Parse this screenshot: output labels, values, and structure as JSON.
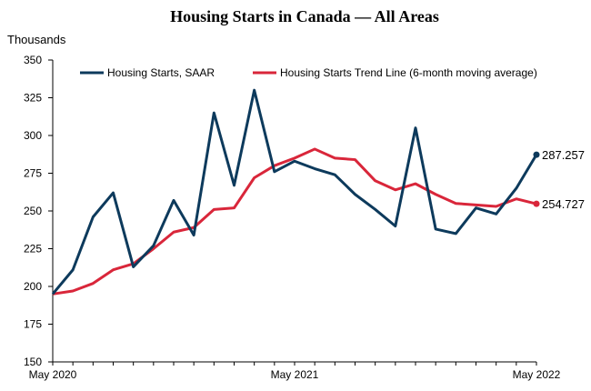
{
  "chart_data": {
    "type": "line",
    "title": "Housing Starts in Canada — All Areas",
    "ylabel": "Thousands",
    "xlabel": "",
    "ylim": [
      150,
      350
    ],
    "yticks": [
      150,
      175,
      200,
      225,
      250,
      275,
      300,
      325,
      350
    ],
    "x": [
      "May 2020",
      "Jun 2020",
      "Jul 2020",
      "Aug 2020",
      "Sep 2020",
      "Oct 2020",
      "Nov 2020",
      "Dec 2020",
      "Jan 2021",
      "Feb 2021",
      "Mar 2021",
      "Apr 2021",
      "May 2021",
      "Jun 2021",
      "Jul 2021",
      "Aug 2021",
      "Sep 2021",
      "Oct 2021",
      "Nov 2021",
      "Dec 2021",
      "Jan 2022",
      "Feb 2022",
      "Mar 2022",
      "Apr 2022",
      "May 2022"
    ],
    "xtick_labels": [
      {
        "index": 0,
        "label": "May 2020"
      },
      {
        "index": 12,
        "label": "May 2021"
      },
      {
        "index": 24,
        "label": "May 2022"
      }
    ],
    "legend_position": "top",
    "series": [
      {
        "name": "Housing Starts, SAAR",
        "color": "#0d3a5c",
        "values": [
          195,
          211,
          246,
          262,
          213,
          227,
          257,
          234,
          315,
          267,
          330,
          276,
          283,
          278,
          274,
          261,
          251,
          240,
          305,
          238,
          235,
          252,
          248,
          265,
          287.257
        ],
        "end_label": "287.257"
      },
      {
        "name": "Housing Starts Trend Line (6-month moving average)",
        "color": "#d9263a",
        "values": [
          195,
          197,
          202,
          211,
          215,
          225,
          236,
          239,
          251,
          252,
          272,
          280,
          285,
          291,
          285,
          284,
          270,
          264,
          268,
          261,
          255,
          254,
          253,
          258,
          254.727
        ],
        "end_label": "254.727"
      }
    ],
    "grid": false
  }
}
